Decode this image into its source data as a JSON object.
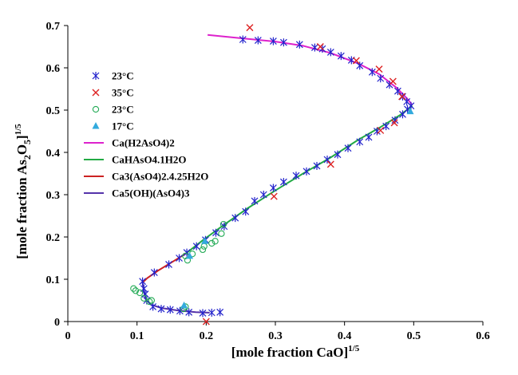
{
  "chart_data": {
    "type": "scatter",
    "xlabel": "[mole fraction CaO]",
    "xlabel_sup": "1/5",
    "ylabel_main": "[mole fraction  As",
    "ylabel_sub1": "2",
    "ylabel_mid": "O",
    "ylabel_sub2": "5",
    "ylabel_end": "]",
    "ylabel_sup": "1/5",
    "xlim": [
      0,
      0.6
    ],
    "ylim": [
      0,
      0.7
    ],
    "xticks": [
      "0",
      "0.1",
      "0.2",
      "0.3",
      "0.4",
      "0.5",
      "0.6"
    ],
    "yticks": [
      "0",
      "0.1",
      "0.2",
      "0.3",
      "0.4",
      "0.5",
      "0.6",
      "0.7"
    ],
    "grid": false,
    "legend_position": "upper-left",
    "series": [
      {
        "name": "23°C",
        "kind": "markers",
        "marker": "star",
        "color": "#2222cc",
        "points": [
          [
            0.253,
            0.667
          ],
          [
            0.275,
            0.665
          ],
          [
            0.297,
            0.663
          ],
          [
            0.312,
            0.66
          ],
          [
            0.335,
            0.655
          ],
          [
            0.357,
            0.648
          ],
          [
            0.368,
            0.645
          ],
          [
            0.38,
            0.637
          ],
          [
            0.395,
            0.628
          ],
          [
            0.41,
            0.618
          ],
          [
            0.422,
            0.605
          ],
          [
            0.44,
            0.59
          ],
          [
            0.452,
            0.575
          ],
          [
            0.465,
            0.56
          ],
          [
            0.477,
            0.545
          ],
          [
            0.484,
            0.532
          ],
          [
            0.49,
            0.52
          ],
          [
            0.496,
            0.51
          ],
          [
            0.491,
            0.502
          ],
          [
            0.484,
            0.49
          ],
          [
            0.473,
            0.476
          ],
          [
            0.46,
            0.462
          ],
          [
            0.447,
            0.45
          ],
          [
            0.435,
            0.436
          ],
          [
            0.422,
            0.425
          ],
          [
            0.405,
            0.41
          ],
          [
            0.39,
            0.395
          ],
          [
            0.375,
            0.383
          ],
          [
            0.36,
            0.368
          ],
          [
            0.345,
            0.355
          ],
          [
            0.33,
            0.345
          ],
          [
            0.312,
            0.33
          ],
          [
            0.297,
            0.316
          ],
          [
            0.283,
            0.3
          ],
          [
            0.27,
            0.285
          ],
          [
            0.257,
            0.26
          ],
          [
            0.242,
            0.245
          ],
          [
            0.226,
            0.225
          ],
          [
            0.214,
            0.21
          ],
          [
            0.199,
            0.193
          ],
          [
            0.186,
            0.178
          ],
          [
            0.172,
            0.163
          ],
          [
            0.161,
            0.15
          ],
          [
            0.146,
            0.135
          ],
          [
            0.125,
            0.116
          ],
          [
            0.108,
            0.095
          ],
          [
            0.11,
            0.078
          ],
          [
            0.112,
            0.065
          ],
          [
            0.114,
            0.05
          ],
          [
            0.123,
            0.035
          ],
          [
            0.135,
            0.03
          ],
          [
            0.148,
            0.028
          ],
          [
            0.162,
            0.025
          ],
          [
            0.175,
            0.022
          ],
          [
            0.195,
            0.02
          ],
          [
            0.208,
            0.021
          ],
          [
            0.22,
            0.022
          ]
        ]
      },
      {
        "name": "35°C",
        "kind": "markers",
        "marker": "x",
        "color": "#dd2222",
        "points": [
          [
            0.263,
            0.695
          ],
          [
            0.365,
            0.65
          ],
          [
            0.417,
            0.617
          ],
          [
            0.45,
            0.597
          ],
          [
            0.47,
            0.568
          ],
          [
            0.483,
            0.532
          ],
          [
            0.472,
            0.47
          ],
          [
            0.452,
            0.452
          ],
          [
            0.38,
            0.372
          ],
          [
            0.298,
            0.296
          ],
          [
            0.2,
            0.0
          ]
        ]
      },
      {
        "name": "23°C",
        "kind": "markers",
        "marker": "circle",
        "color": "#22aa55",
        "points": [
          [
            0.095,
            0.078
          ],
          [
            0.098,
            0.073
          ],
          [
            0.104,
            0.068
          ],
          [
            0.11,
            0.055
          ],
          [
            0.118,
            0.047
          ],
          [
            0.121,
            0.05
          ],
          [
            0.17,
            0.155
          ],
          [
            0.173,
            0.145
          ],
          [
            0.18,
            0.16
          ],
          [
            0.195,
            0.17
          ],
          [
            0.197,
            0.178
          ],
          [
            0.208,
            0.185
          ],
          [
            0.213,
            0.19
          ],
          [
            0.222,
            0.208
          ],
          [
            0.225,
            0.23
          ],
          [
            0.167,
            0.03
          ],
          [
            0.17,
            0.035
          ]
        ]
      },
      {
        "name": "17°C",
        "kind": "markers",
        "marker": "triangle",
        "color": "#33aadd",
        "points": [
          [
            0.168,
            0.038
          ],
          [
            0.176,
            0.155
          ],
          [
            0.198,
            0.19
          ],
          [
            0.495,
            0.497
          ]
        ]
      },
      {
        "name": "Ca(H2AsO4)2",
        "kind": "line",
        "color": "#dd22cc",
        "points": [
          [
            0.202,
            0.678
          ],
          [
            0.25,
            0.67
          ],
          [
            0.3,
            0.662
          ],
          [
            0.34,
            0.652
          ],
          [
            0.38,
            0.635
          ],
          [
            0.42,
            0.61
          ],
          [
            0.45,
            0.585
          ],
          [
            0.475,
            0.553
          ],
          [
            0.49,
            0.528
          ],
          [
            0.498,
            0.512
          ]
        ]
      },
      {
        "name": "CaHAsO4.1H2O",
        "kind": "line",
        "color": "#22aa44",
        "points": [
          [
            0.498,
            0.51
          ],
          [
            0.48,
            0.488
          ],
          [
            0.45,
            0.458
          ],
          [
            0.42,
            0.43
          ],
          [
            0.38,
            0.388
          ],
          [
            0.34,
            0.35
          ],
          [
            0.3,
            0.31
          ],
          [
            0.26,
            0.268
          ],
          [
            0.225,
            0.228
          ],
          [
            0.195,
            0.192
          ],
          [
            0.17,
            0.16
          ]
        ]
      },
      {
        "name": "Ca3(AsO4)2.4.25H2O",
        "kind": "line",
        "color": "#cc2222",
        "points": [
          [
            0.17,
            0.16
          ],
          [
            0.15,
            0.14
          ],
          [
            0.13,
            0.12
          ],
          [
            0.115,
            0.103
          ],
          [
            0.108,
            0.092
          ]
        ]
      },
      {
        "name": "Ca5(OH)(AsO4)3",
        "kind": "line",
        "color": "#5533aa",
        "points": [
          [
            0.108,
            0.092
          ],
          [
            0.11,
            0.07
          ],
          [
            0.113,
            0.052
          ],
          [
            0.12,
            0.04
          ],
          [
            0.135,
            0.032
          ],
          [
            0.16,
            0.026
          ],
          [
            0.185,
            0.022
          ],
          [
            0.205,
            0.021
          ]
        ]
      }
    ]
  }
}
